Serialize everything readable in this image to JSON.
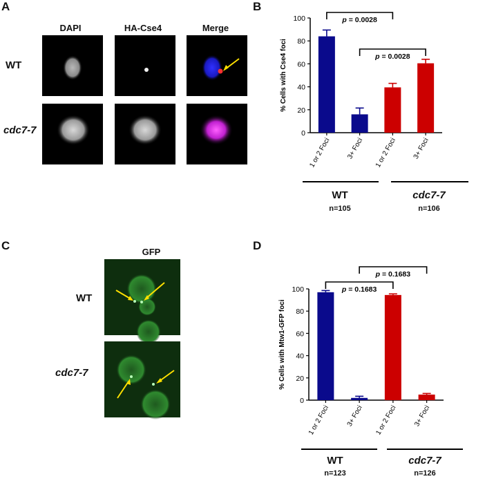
{
  "panels": {
    "A": {
      "letter": "A",
      "columns": [
        "DAPI",
        "HA-Cse4",
        "Merge"
      ],
      "rows": [
        "WT",
        "cdc7-7"
      ]
    },
    "B": {
      "letter": "B",
      "groups": [
        {
          "label": "WT",
          "n": "n=105"
        },
        {
          "label": "cdc7-7",
          "n": "n=106"
        }
      ]
    },
    "C": {
      "letter": "C",
      "column": "GFP",
      "rows": [
        "WT",
        "cdc7-7"
      ]
    },
    "D": {
      "letter": "D",
      "groups": [
        {
          "label": "WT",
          "n": "n=123"
        },
        {
          "label": "cdc7-7",
          "n": "n=126"
        }
      ]
    }
  },
  "chart_data": [
    {
      "panel": "B",
      "type": "bar",
      "categories": [
        "1 or 2 Foci",
        "3+ Foci",
        "1 or 2 Foci",
        "3+ Foci"
      ],
      "values": [
        84,
        16,
        39.5,
        60.5
      ],
      "errors": [
        5.5,
        5.5,
        3.5,
        3.5
      ],
      "colors": [
        "#0a0a8c",
        "#0a0a8c",
        "#cc0000",
        "#cc0000"
      ],
      "ylabel": "% Cells with Cse4 foci",
      "ylim": [
        0,
        100
      ],
      "yticks": [
        "0",
        "20",
        "40",
        "60",
        "80",
        "100"
      ],
      "annotations": [
        {
          "bars": [
            0,
            2
          ],
          "prefix": "p",
          "text": " = 0.0028"
        },
        {
          "bars": [
            1,
            3
          ],
          "prefix": "p",
          "text": " = 0.0028"
        }
      ]
    },
    {
      "panel": "D",
      "type": "bar",
      "categories": [
        "1 or 2 Foci",
        "3+ Foci",
        "1 or 2 Foci",
        "3+ Foci"
      ],
      "values": [
        97,
        2,
        94.5,
        5
      ],
      "errors": [
        1.5,
        1.5,
        1,
        1
      ],
      "colors": [
        "#0a0a8c",
        "#0a0a8c",
        "#cc0000",
        "#cc0000"
      ],
      "ylabel": "% Cells with Mtw1-GFP foci",
      "ylim": [
        0,
        100
      ],
      "yticks": [
        "0",
        "20",
        "40",
        "60",
        "80",
        "100"
      ],
      "annotations": [
        {
          "bars": [
            0,
            2
          ],
          "prefix": "p",
          "text": " = 0.1683"
        },
        {
          "bars": [
            1,
            3
          ],
          "prefix": "p",
          "text": " = 0.1683"
        }
      ]
    }
  ]
}
